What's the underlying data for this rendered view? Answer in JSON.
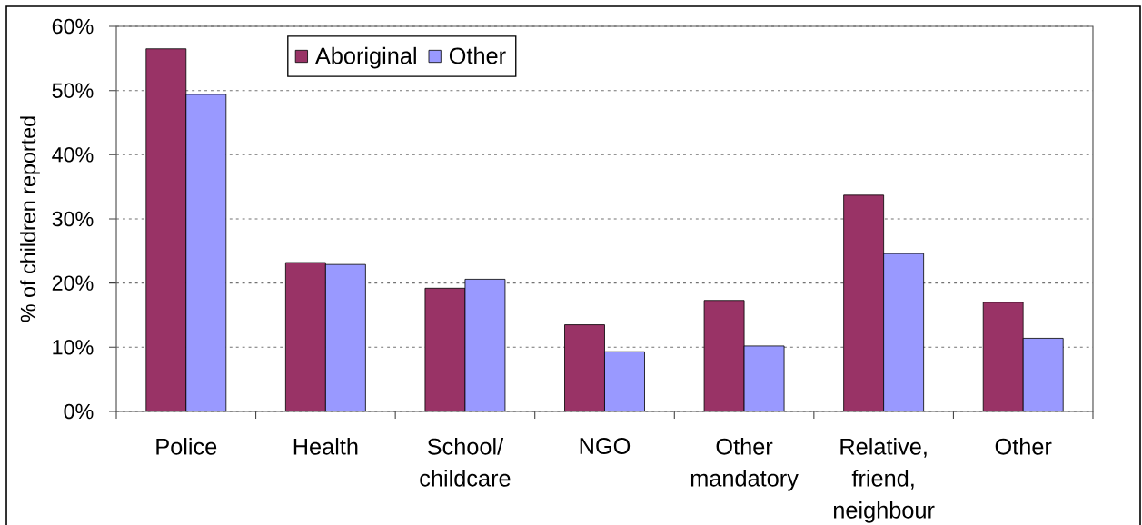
{
  "chart_data": {
    "type": "bar",
    "ylabel": "% of children reported",
    "categories": [
      "Police",
      "Health",
      "School/ childcare",
      "NGO",
      "Other mandatory",
      "Relative, friend, neighbour",
      "Other"
    ],
    "series": [
      {
        "name": "Aboriginal",
        "color": "#993366",
        "values": [
          56.5,
          23.2,
          19.2,
          13.5,
          17.3,
          33.7,
          17.0
        ]
      },
      {
        "name": "Other",
        "color": "#9999ff",
        "values": [
          49.4,
          22.9,
          20.6,
          9.3,
          10.2,
          24.6,
          11.4
        ]
      }
    ],
    "ylim": [
      0,
      60
    ],
    "yticks": [
      {
        "value": 0,
        "label": "0%"
      },
      {
        "value": 10,
        "label": "10%"
      },
      {
        "value": 20,
        "label": "20%"
      },
      {
        "value": 30,
        "label": "30%"
      },
      {
        "value": 40,
        "label": "40%"
      },
      {
        "value": 50,
        "label": "50%"
      },
      {
        "value": 60,
        "label": "60%"
      }
    ],
    "grid": "y",
    "legend": "top left"
  }
}
